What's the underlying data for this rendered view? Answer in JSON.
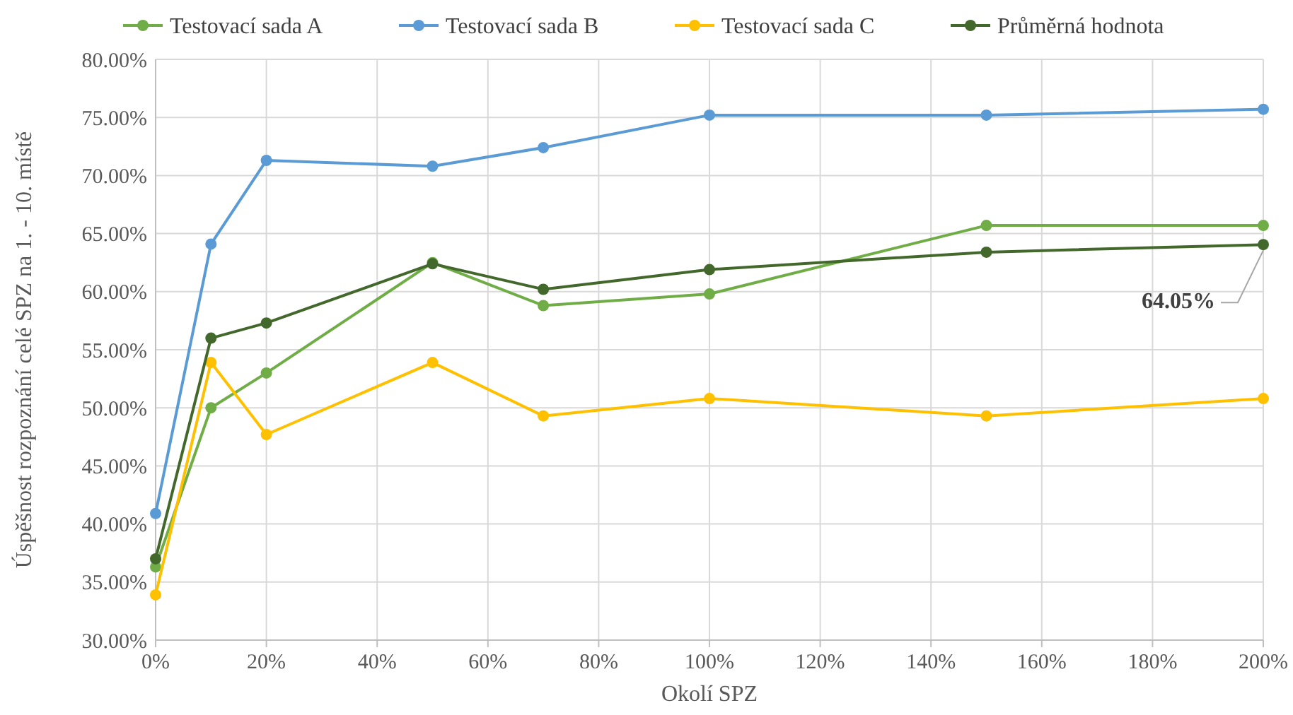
{
  "chart_data": {
    "type": "line",
    "xlabel": "Okolí SPZ",
    "ylabel": "Úspěšnost rozpoznání celé SPZ na 1. - 10. místě",
    "x": [
      0,
      10,
      20,
      50,
      70,
      100,
      150,
      200
    ],
    "series": [
      {
        "name": "Testovací sada A",
        "color": "#70ad47",
        "values": [
          36.3,
          50.0,
          53.0,
          62.5,
          58.8,
          59.8,
          65.7,
          65.7
        ]
      },
      {
        "name": "Testovací sada B",
        "color": "#5b9bd5",
        "values": [
          40.9,
          64.1,
          71.3,
          70.8,
          72.4,
          75.2,
          75.2,
          75.7
        ]
      },
      {
        "name": "Testovací sada C",
        "color": "#ffc000",
        "values": [
          33.9,
          53.9,
          47.7,
          53.9,
          49.3,
          50.8,
          49.3,
          50.8
        ]
      },
      {
        "name": "Průměrná hodnota",
        "color": "#43682b",
        "values": [
          37.0,
          56.0,
          57.3,
          62.4,
          60.2,
          61.9,
          63.4,
          64.05
        ]
      }
    ],
    "xlim": [
      0,
      200
    ],
    "xticks": [
      {
        "value": 0,
        "label": "0%"
      },
      {
        "value": 20,
        "label": "20%"
      },
      {
        "value": 40,
        "label": "40%"
      },
      {
        "value": 60,
        "label": "60%"
      },
      {
        "value": 80,
        "label": "80%"
      },
      {
        "value": 100,
        "label": "100%"
      },
      {
        "value": 120,
        "label": "120%"
      },
      {
        "value": 140,
        "label": "140%"
      },
      {
        "value": 160,
        "label": "160%"
      },
      {
        "value": 180,
        "label": "180%"
      },
      {
        "value": 200,
        "label": "200%"
      }
    ],
    "ylim": [
      30,
      80
    ],
    "yticks": [
      {
        "value": 30,
        "label": "30.00%"
      },
      {
        "value": 35,
        "label": "35.00%"
      },
      {
        "value": 40,
        "label": "40.00%"
      },
      {
        "value": 45,
        "label": "45.00%"
      },
      {
        "value": 50,
        "label": "50.00%"
      },
      {
        "value": 55,
        "label": "55.00%"
      },
      {
        "value": 60,
        "label": "60.00%"
      },
      {
        "value": 65,
        "label": "65.00%"
      },
      {
        "value": 70,
        "label": "70.00%"
      },
      {
        "value": 75,
        "label": "75.00%"
      },
      {
        "value": 80,
        "label": "80.00%"
      }
    ],
    "annotations": [
      {
        "text": "64.05%",
        "x": 200,
        "y": 64.05
      }
    ],
    "grid": true,
    "legend": "top",
    "marker": "circle",
    "line_style": "solid"
  }
}
